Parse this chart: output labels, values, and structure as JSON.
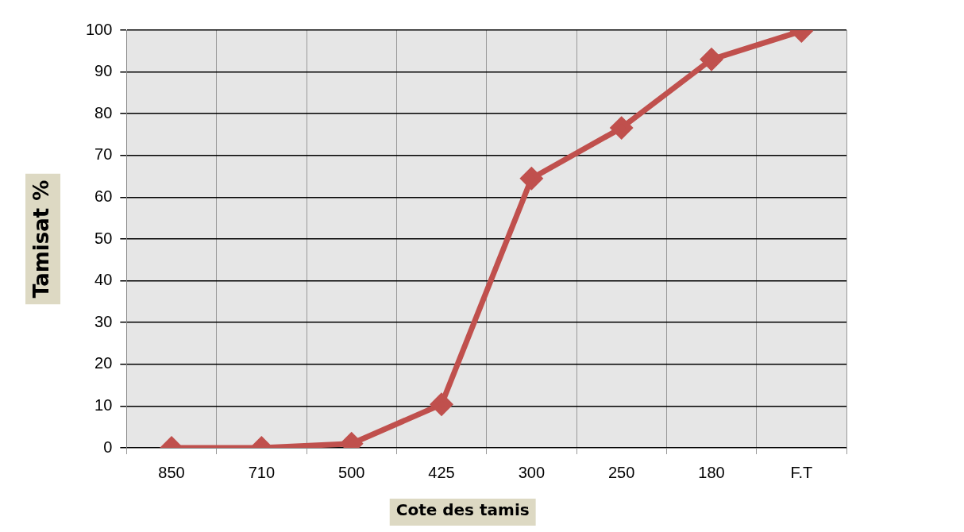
{
  "chart_data": {
    "type": "line",
    "xlabel": "Cote des tamis",
    "ylabel": "Tamisat %",
    "categories": [
      "850",
      "710",
      "500",
      "425",
      "300",
      "250",
      "180",
      "F.T"
    ],
    "series": [
      {
        "color": "#c0504d",
        "values": [
          0,
          0,
          1,
          10.4,
          64.5,
          76.6,
          93,
          99.8
        ]
      }
    ],
    "ylim": [
      0,
      100
    ],
    "yticks": [
      0,
      10,
      20,
      30,
      40,
      50,
      60,
      70,
      80,
      90,
      100
    ],
    "grid": true,
    "legend": false,
    "marker": "diamond",
    "line_style": "solid"
  }
}
